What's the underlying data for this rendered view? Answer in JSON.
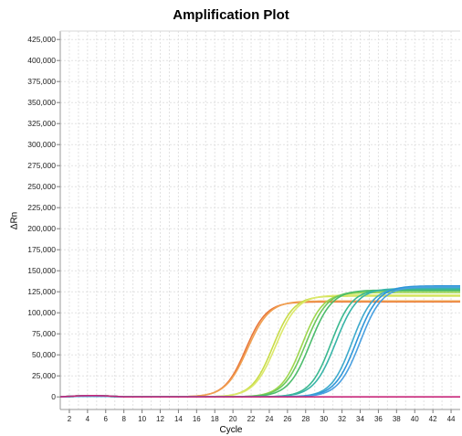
{
  "chart_data": {
    "type": "line",
    "title": "Amplification Plot",
    "xlabel": "Cycle",
    "ylabel": "ΔRn",
    "xlim": [
      1,
      45
    ],
    "ylim": [
      -15000,
      435000
    ],
    "x_ticks": [
      2,
      4,
      6,
      8,
      10,
      12,
      14,
      16,
      18,
      20,
      22,
      24,
      26,
      28,
      30,
      32,
      34,
      36,
      38,
      40,
      42,
      44
    ],
    "y_ticks": [
      0,
      25000,
      50000,
      75000,
      100000,
      125000,
      150000,
      175000,
      200000,
      225000,
      250000,
      275000,
      300000,
      325000,
      350000,
      375000,
      400000,
      425000
    ],
    "y_tick_labels": [
      "0",
      "25,000",
      "50,000",
      "75,000",
      "100,000",
      "125,000",
      "150,000",
      "175,000",
      "200,000",
      "225,000",
      "250,000",
      "275,000",
      "300,000",
      "325,000",
      "350,000",
      "375,000",
      "400,000",
      "425,000"
    ],
    "grid": true,
    "series": [
      {
        "color": "#e8763a",
        "plateau": 113000,
        "midpoint": 21.4,
        "slope": 1.15
      },
      {
        "color": "#f0a050",
        "plateau": 114000,
        "midpoint": 21.6,
        "slope": 1.2
      },
      {
        "color": "#c8dc46",
        "plateau": 120000,
        "midpoint": 24.4,
        "slope": 1.15
      },
      {
        "color": "#dce86a",
        "plateau": 121000,
        "midpoint": 24.7,
        "slope": 1.2
      },
      {
        "color": "#9ed64e",
        "plateau": 124000,
        "midpoint": 27.6,
        "slope": 1.15
      },
      {
        "color": "#6cc85c",
        "plateau": 126000,
        "midpoint": 28.0,
        "slope": 1.2
      },
      {
        "color": "#4cbc6c",
        "plateau": 127000,
        "midpoint": 28.5,
        "slope": 1.2
      },
      {
        "color": "#3ab890",
        "plateau": 128000,
        "midpoint": 30.8,
        "slope": 1.15
      },
      {
        "color": "#38b4a8",
        "plateau": 129000,
        "midpoint": 31.3,
        "slope": 1.2
      },
      {
        "color": "#3eaacc",
        "plateau": 130000,
        "midpoint": 33.1,
        "slope": 1.15
      },
      {
        "color": "#2e96d8",
        "plateau": 132000,
        "midpoint": 33.6,
        "slope": 1.2
      },
      {
        "color": "#4aa0e0",
        "plateau": 131000,
        "midpoint": 34.0,
        "slope": 1.2
      },
      {
        "color": "#c8287a",
        "plateau": 0,
        "midpoint": 60,
        "slope": 1.0
      }
    ]
  }
}
